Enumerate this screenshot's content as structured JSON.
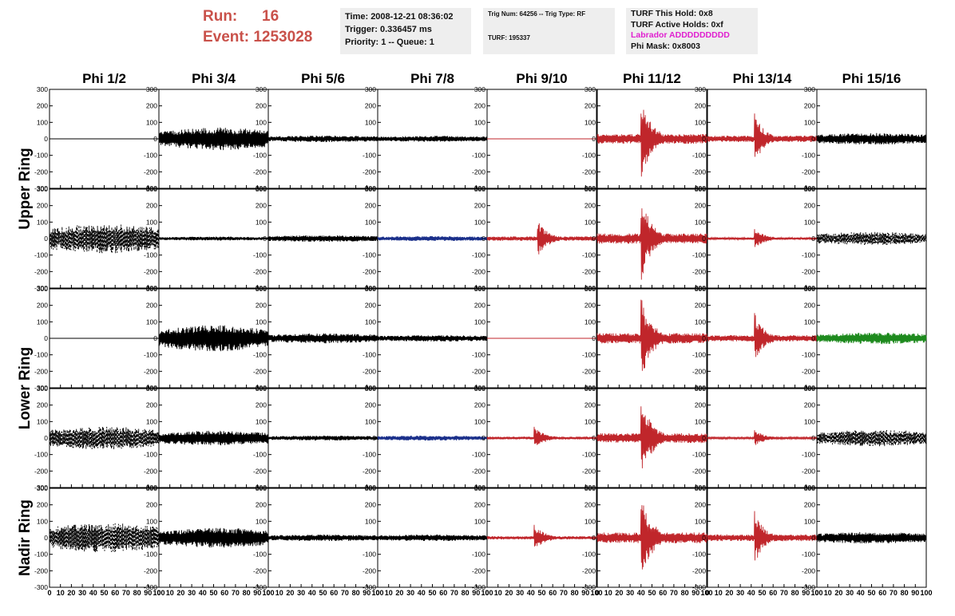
{
  "header": {
    "run_label": "Run:",
    "run_value": "16",
    "event_label": "Event:",
    "event_value": "1253028",
    "time_text": "Time: 2008-12-21 08:36:02",
    "trigger_text": "Trigger: 0.336457 ms",
    "priority_text": "Priority: 1 -- Queue: 1",
    "trig_num_text": "Trig Num: 64256 -- Trig Type: RF",
    "turf_text": "TURF: 195337",
    "turf_hold_text": "TURF This Hold: 0x8",
    "turf_active_text": "TURF Active Holds: 0xf",
    "labrador_text": "Labrador ADDDDDDDDD",
    "phi_mask_text": "Phi Mask: 0x8003"
  },
  "colors": {
    "run": "#c9514a",
    "labrador": "#e020d0",
    "trace_default": "#000000",
    "trace_red": "#c0262b",
    "trace_blue": "#1a2f8a",
    "trace_green": "#1e8a1e",
    "info_bg": "#eeeeee"
  },
  "chart_data": {
    "type": "line",
    "description_free": true,
    "columns": [
      "Phi 1/2",
      "Phi 3/4",
      "Phi 5/6",
      "Phi 7/8",
      "Phi 9/10",
      "Phi 11/12",
      "Phi 13/14",
      "Phi 15/16"
    ],
    "row_groups": [
      {
        "label": "Upper Ring",
        "rows": [
          0,
          1
        ]
      },
      {
        "label": "Lower Ring",
        "rows": [
          2,
          3
        ]
      },
      {
        "label": "Nadir Ring",
        "rows": [
          4
        ]
      }
    ],
    "ylim": [
      -300,
      300
    ],
    "yticks": [
      "300",
      "200",
      "100",
      "0",
      "-100",
      "-200",
      "-300"
    ],
    "yticks_values": [
      300,
      200,
      100,
      0,
      -100,
      -200,
      -300
    ],
    "xlim": [
      0,
      100
    ],
    "xticks": [
      "0",
      "10",
      "20",
      "30",
      "40",
      "50",
      "60",
      "70",
      "80",
      "90",
      "100"
    ],
    "xticks_values": [
      0,
      10,
      20,
      30,
      40,
      50,
      60,
      70,
      80,
      90,
      100
    ],
    "panels": [
      [
        {
          "color": "black",
          "style": "flat",
          "amp": 0,
          "center": 50,
          "width": 0
        },
        {
          "color": "black",
          "style": "noise",
          "amp": 70,
          "center": 55,
          "width": 50
        },
        {
          "color": "black",
          "style": "noise",
          "amp": 20,
          "center": 50,
          "width": 60
        },
        {
          "color": "black",
          "style": "noise",
          "amp": 18,
          "center": 50,
          "width": 60
        },
        {
          "color": "red",
          "style": "flat",
          "amp": 0,
          "center": 50,
          "width": 0
        },
        {
          "color": "red",
          "style": "pulse",
          "amp": 250,
          "center": 42,
          "width": 10
        },
        {
          "color": "red",
          "style": "pulse",
          "amp": 160,
          "center": 45,
          "width": 9
        },
        {
          "color": "black",
          "style": "noise",
          "amp": 35,
          "center": 50,
          "width": 60
        }
      ],
      [
        {
          "color": "black",
          "style": "dashed",
          "amp": 90,
          "center": 50,
          "width": 60
        },
        {
          "color": "black",
          "style": "noise",
          "amp": 12,
          "center": 50,
          "width": 60
        },
        {
          "color": "black",
          "style": "noise",
          "amp": 20,
          "center": 50,
          "width": 60
        },
        {
          "color": "blue",
          "style": "noise",
          "amp": 15,
          "center": 50,
          "width": 60
        },
        {
          "color": "red",
          "style": "pulse",
          "amp": 110,
          "center": 48,
          "width": 10
        },
        {
          "color": "red",
          "style": "pulse",
          "amp": 260,
          "center": 42,
          "width": 10
        },
        {
          "color": "red",
          "style": "pulse",
          "amp": 60,
          "center": 45,
          "width": 10
        },
        {
          "color": "black",
          "style": "dashed",
          "amp": 40,
          "center": 50,
          "width": 60
        }
      ],
      [
        {
          "color": "black",
          "style": "flat",
          "amp": 0,
          "center": 50,
          "width": 0
        },
        {
          "color": "black",
          "style": "noise",
          "amp": 80,
          "center": 50,
          "width": 50
        },
        {
          "color": "black",
          "style": "noise",
          "amp": 30,
          "center": 50,
          "width": 60
        },
        {
          "color": "black",
          "style": "noise",
          "amp": 20,
          "center": 50,
          "width": 60
        },
        {
          "color": "red",
          "style": "flat",
          "amp": 0,
          "center": 50,
          "width": 0
        },
        {
          "color": "red",
          "style": "pulse",
          "amp": 260,
          "center": 42,
          "width": 10
        },
        {
          "color": "red",
          "style": "pulse",
          "amp": 160,
          "center": 45,
          "width": 9
        },
        {
          "color": "green",
          "style": "noise",
          "amp": 35,
          "center": 55,
          "width": 55
        }
      ],
      [
        {
          "color": "black",
          "style": "dashed",
          "amp": 70,
          "center": 50,
          "width": 60
        },
        {
          "color": "black",
          "style": "noise",
          "amp": 45,
          "center": 50,
          "width": 60
        },
        {
          "color": "black",
          "style": "noise",
          "amp": 15,
          "center": 50,
          "width": 60
        },
        {
          "color": "blue",
          "style": "noise",
          "amp": 15,
          "center": 50,
          "width": 60
        },
        {
          "color": "red",
          "style": "pulse",
          "amp": 70,
          "center": 45,
          "width": 10
        },
        {
          "color": "red",
          "style": "pulse",
          "amp": 250,
          "center": 42,
          "width": 10
        },
        {
          "color": "red",
          "style": "pulse",
          "amp": 50,
          "center": 45,
          "width": 10
        },
        {
          "color": "black",
          "style": "dashed",
          "amp": 50,
          "center": 55,
          "width": 60
        }
      ],
      [
        {
          "color": "black",
          "style": "dashed",
          "amp": 90,
          "center": 50,
          "width": 60
        },
        {
          "color": "black",
          "style": "noise",
          "amp": 60,
          "center": 55,
          "width": 55
        },
        {
          "color": "black",
          "style": "noise",
          "amp": 20,
          "center": 50,
          "width": 60
        },
        {
          "color": "black",
          "style": "noise",
          "amp": 20,
          "center": 50,
          "width": 60
        },
        {
          "color": "red",
          "style": "pulse",
          "amp": 80,
          "center": 45,
          "width": 10
        },
        {
          "color": "red",
          "style": "pulse",
          "amp": 270,
          "center": 42,
          "width": 10
        },
        {
          "color": "red",
          "style": "pulse",
          "amp": 170,
          "center": 45,
          "width": 9
        },
        {
          "color": "black",
          "style": "noise",
          "amp": 35,
          "center": 50,
          "width": 60
        }
      ]
    ]
  }
}
